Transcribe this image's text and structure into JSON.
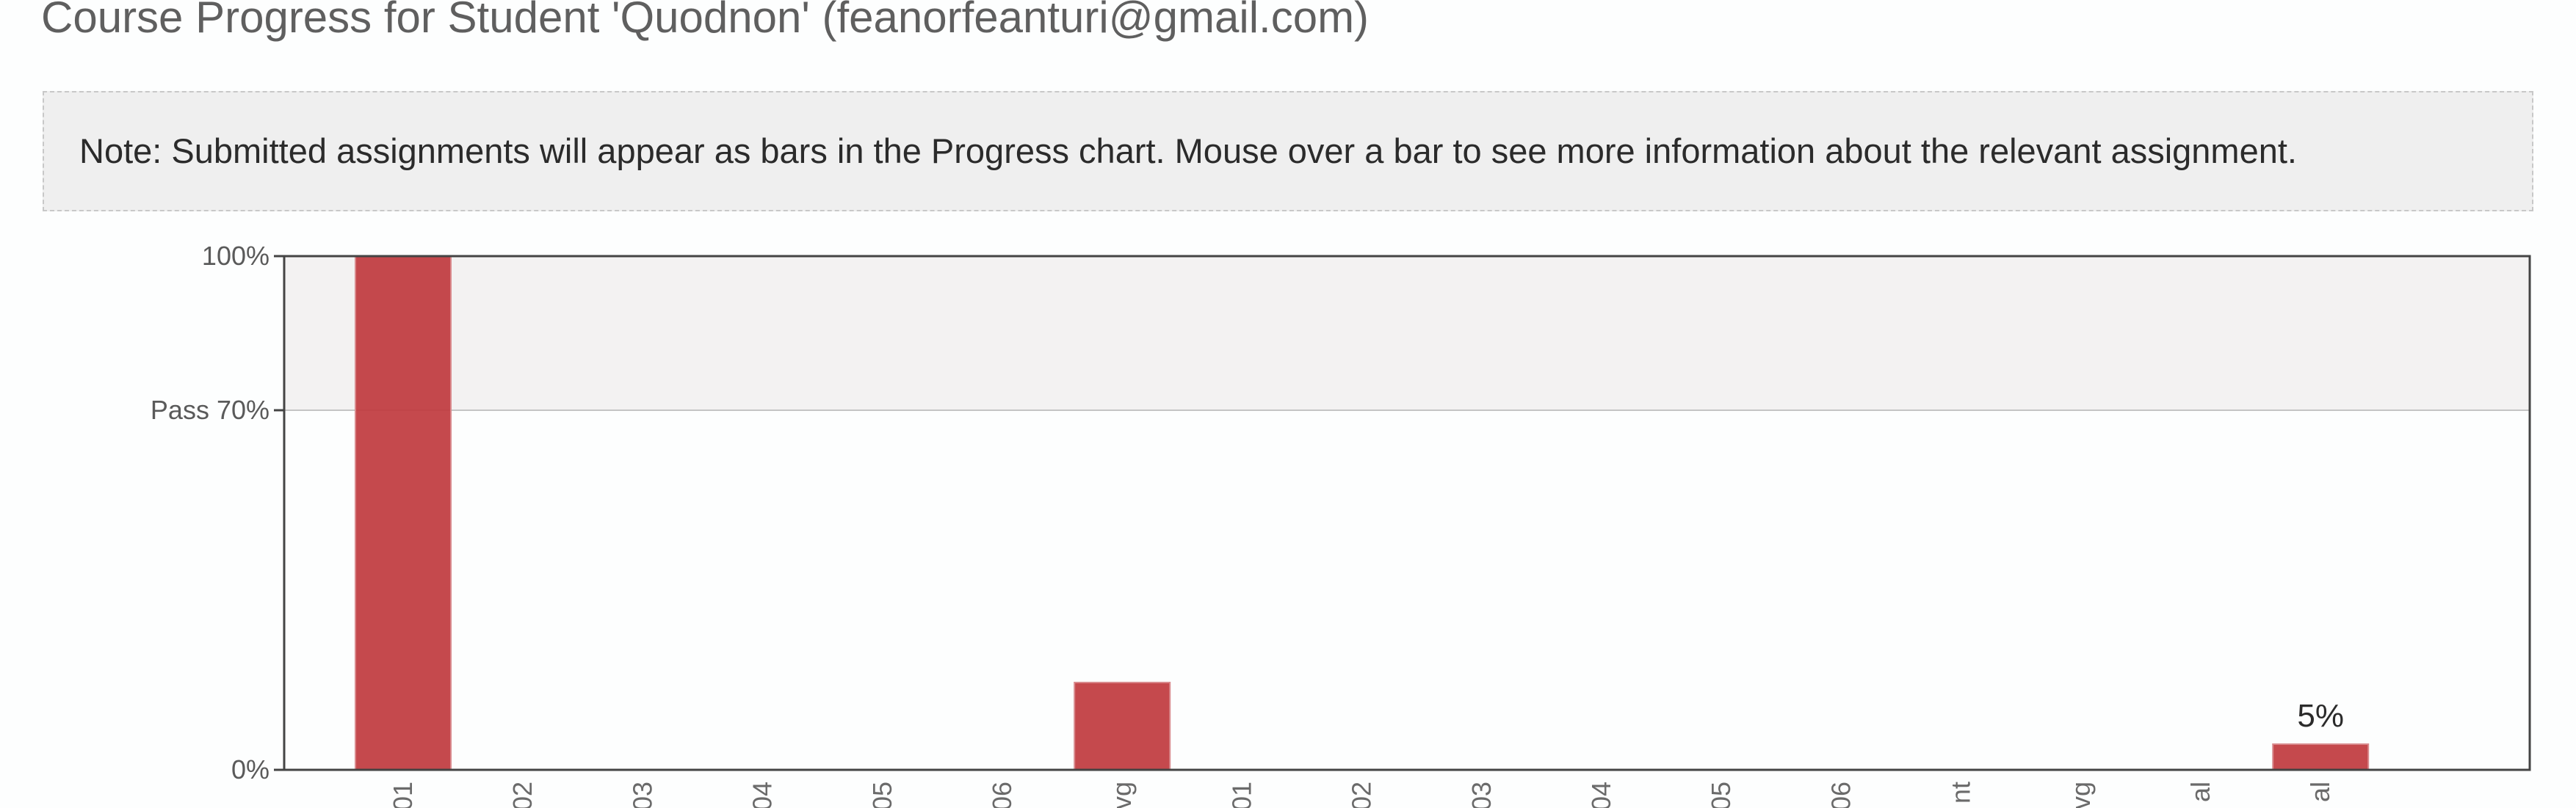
{
  "page": {
    "title": "Course Progress for Student 'Quodnon' (feanorfeanturi@gmail.com)"
  },
  "note": {
    "text": "Note: Submitted assignments will appear as bars in the Progress chart. Mouse over a bar to see more information about the relevant assignment."
  },
  "chart_data": {
    "type": "bar",
    "categories": [
      "01",
      "02",
      "03",
      "04",
      "05",
      "06",
      "vg",
      "01",
      "02",
      "03",
      "04",
      "05",
      "06",
      "nt",
      "vg",
      "al",
      "al"
    ],
    "values": [
      100,
      0,
      0,
      0,
      0,
      0,
      17,
      0,
      0,
      0,
      0,
      0,
      0,
      0,
      0,
      0,
      5
    ],
    "bar_labels": [
      "",
      "",
      "",
      "",
      "",
      "",
      "",
      "",
      "",
      "",
      "",
      "",
      "",
      "",
      "",
      "",
      "5%"
    ],
    "y_ticks": [
      {
        "value": 0,
        "label": "0%"
      },
      {
        "value": 70,
        "label": "Pass 70%"
      },
      {
        "value": 100,
        "label": "100%"
      }
    ],
    "ylim": [
      0,
      100
    ],
    "pass_threshold": 70,
    "bar_color": "#c0393e",
    "pass_band_color": "#f3f2f2",
    "grid": false
  }
}
